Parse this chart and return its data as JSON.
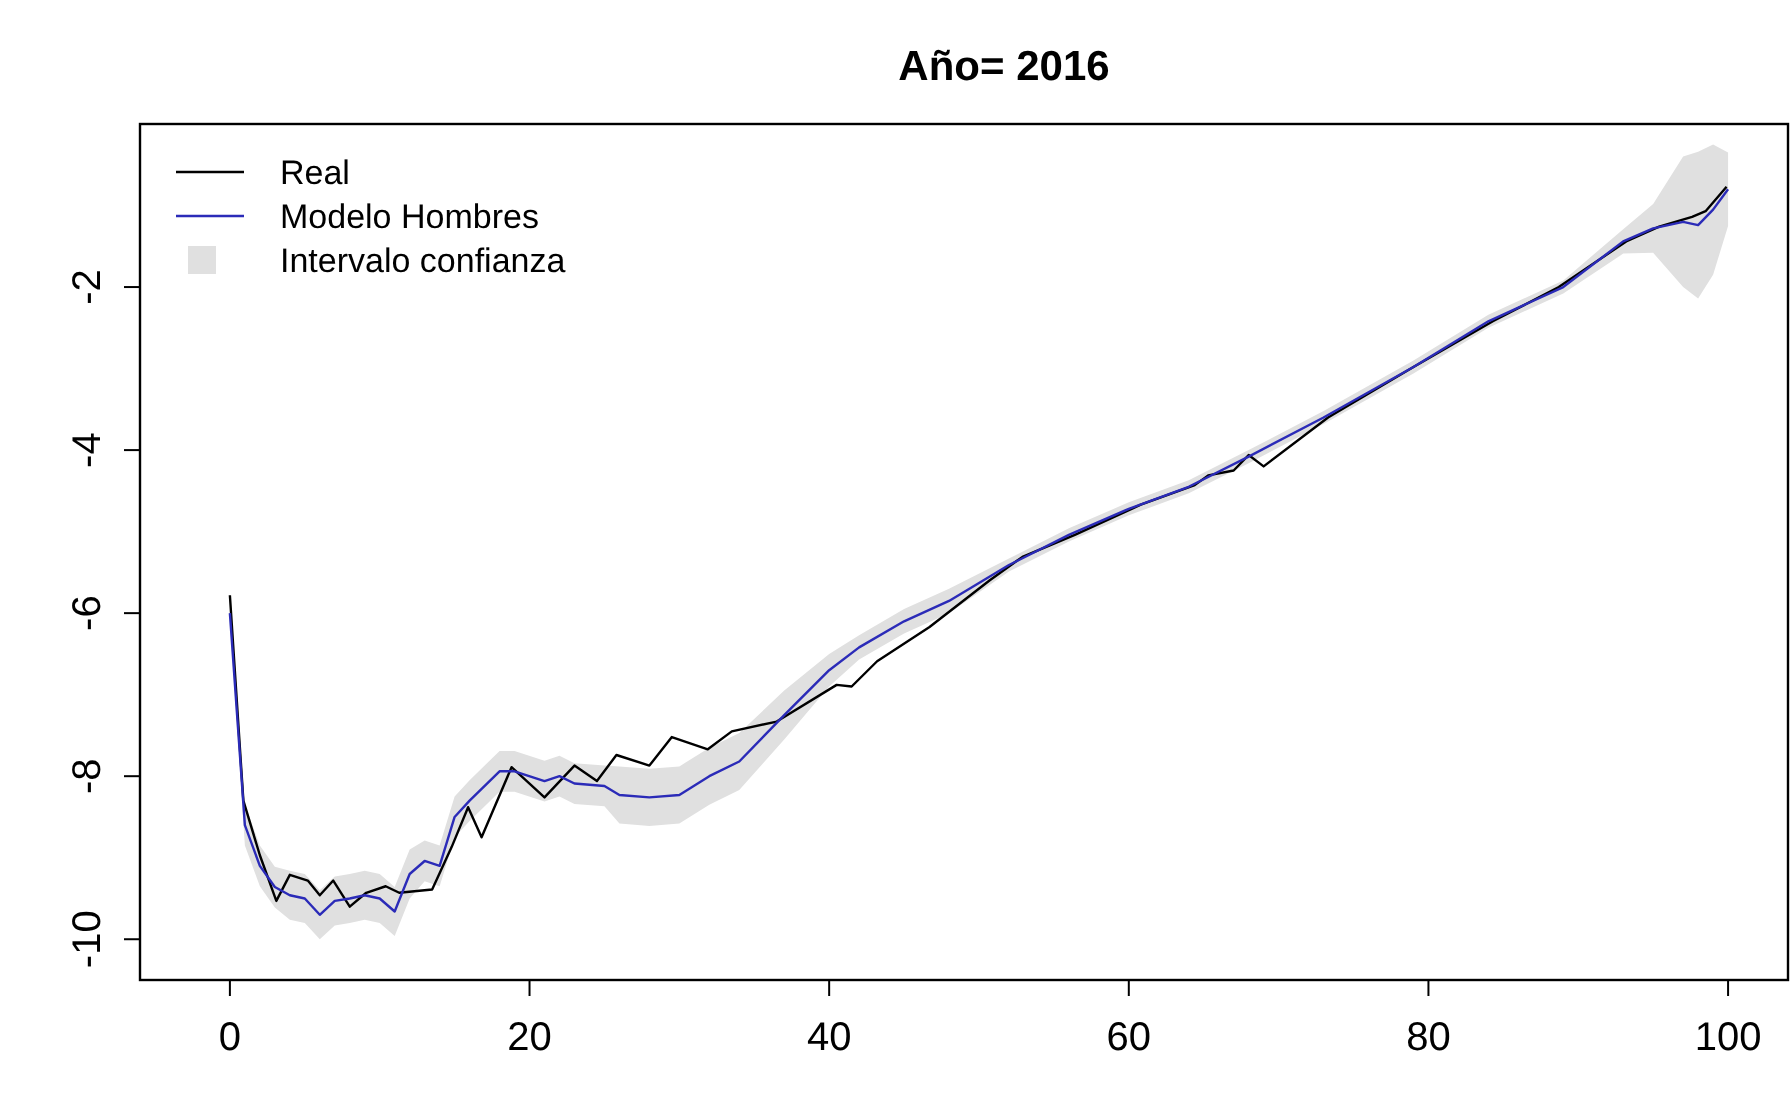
{
  "chart_data": {
    "type": "line",
    "title": "Año= 2016",
    "xlim": [
      -6,
      104
    ],
    "ylim": [
      -10.5,
      0
    ],
    "xticks": [
      0,
      20,
      40,
      60,
      80,
      100
    ],
    "yticks": [
      -2,
      -4,
      -6,
      -8,
      -10
    ],
    "grid": false,
    "legend": "top left",
    "line_style": "solid",
    "marker": "none",
    "annotations": [
      "Intervalo confianza"
    ],
    "series": [
      {
        "name": "Real",
        "color": "#000000",
        "x": [
          0,
          0.9,
          2,
          3.1,
          4,
          5.2,
          6,
          6.9,
          8,
          9.1,
          10.4,
          11.3,
          13.5,
          14.8,
          15.9,
          16.8,
          18.8,
          21,
          23,
          24.5,
          25.8,
          28,
          29.5,
          31.9,
          33.5,
          36.5,
          40.5,
          41.5,
          43.2,
          46.7,
          50.7,
          52.9,
          56.4,
          60.8,
          64.4,
          65.3,
          67,
          68,
          69,
          73.3,
          79,
          84.3,
          88.7,
          93.2,
          95.4,
          97.6,
          98.5,
          99.9
        ],
        "values": [
          -5.78,
          -8.3,
          -8.97,
          -9.53,
          -9.21,
          -9.28,
          -9.46,
          -9.28,
          -9.6,
          -9.43,
          -9.35,
          -9.43,
          -9.39,
          -8.87,
          -8.38,
          -8.75,
          -7.89,
          -8.26,
          -7.87,
          -8.06,
          -7.74,
          -7.87,
          -7.52,
          -7.67,
          -7.45,
          -7.33,
          -6.88,
          -6.9,
          -6.59,
          -6.17,
          -5.6,
          -5.31,
          -5.04,
          -4.67,
          -4.43,
          -4.31,
          -4.25,
          -4.06,
          -4.2,
          -3.6,
          -2.98,
          -2.42,
          -2.0,
          -1.44,
          -1.26,
          -1.14,
          -1.07,
          -0.77
        ]
      },
      {
        "name": "Modelo Hombres",
        "color": "#2b2bb8",
        "x": [
          0,
          1,
          2,
          3,
          4,
          5,
          6,
          7,
          8,
          9,
          10,
          11,
          12,
          13,
          14,
          15,
          16,
          18,
          19,
          21,
          22,
          23,
          25,
          26,
          28,
          30,
          32,
          34,
          37,
          40,
          42,
          45,
          48,
          52,
          56,
          60,
          64,
          68,
          73,
          79,
          84,
          89,
          93,
          95,
          97,
          98,
          99,
          100
        ],
        "values": [
          -6.0,
          -8.6,
          -9.1,
          -9.36,
          -9.46,
          -9.5,
          -9.7,
          -9.53,
          -9.5,
          -9.46,
          -9.5,
          -9.66,
          -9.2,
          -9.04,
          -9.1,
          -8.5,
          -8.3,
          -7.94,
          -7.94,
          -8.06,
          -8.0,
          -8.09,
          -8.12,
          -8.23,
          -8.26,
          -8.23,
          -8.0,
          -7.82,
          -7.25,
          -6.7,
          -6.42,
          -6.1,
          -5.85,
          -5.41,
          -5.04,
          -4.72,
          -4.45,
          -4.08,
          -3.6,
          -2.98,
          -2.42,
          -2.0,
          -1.44,
          -1.28,
          -1.2,
          -1.24,
          -1.05,
          -0.8
        ],
        "lower": [
          -6.1,
          -8.85,
          -9.35,
          -9.61,
          -9.76,
          -9.8,
          -10.0,
          -9.83,
          -9.8,
          -9.76,
          -9.8,
          -9.96,
          -9.5,
          -9.29,
          -9.35,
          -8.75,
          -8.55,
          -8.19,
          -8.19,
          -8.31,
          -8.25,
          -8.34,
          -8.37,
          -8.58,
          -8.61,
          -8.58,
          -8.35,
          -8.17,
          -7.55,
          -6.9,
          -6.57,
          -6.25,
          -6.0,
          -5.49,
          -5.12,
          -4.8,
          -4.53,
          -4.16,
          -3.68,
          -3.06,
          -2.5,
          -2.08,
          -1.59,
          -1.58,
          -2.0,
          -2.14,
          -1.85,
          -1.25
        ],
        "upper": [
          -5.9,
          -8.35,
          -8.85,
          -9.11,
          -9.16,
          -9.2,
          -9.4,
          -9.23,
          -9.2,
          -9.16,
          -9.2,
          -9.36,
          -8.9,
          -8.79,
          -8.85,
          -8.25,
          -8.05,
          -7.69,
          -7.69,
          -7.81,
          -7.75,
          -7.84,
          -7.87,
          -7.88,
          -7.91,
          -7.88,
          -7.65,
          -7.47,
          -6.95,
          -6.5,
          -6.27,
          -5.95,
          -5.7,
          -5.33,
          -4.96,
          -4.64,
          -4.37,
          -4.0,
          -3.52,
          -2.9,
          -2.34,
          -1.92,
          -1.29,
          -0.98,
          -0.4,
          -0.34,
          -0.25,
          -0.35
        ]
      }
    ]
  }
}
